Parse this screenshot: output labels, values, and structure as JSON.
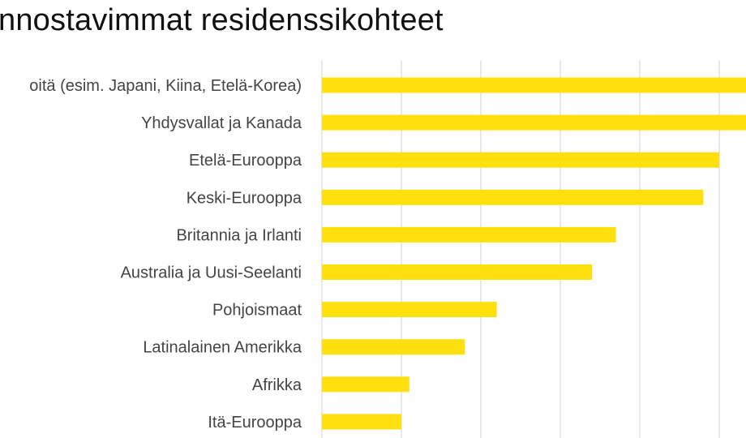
{
  "chart_data": {
    "type": "bar",
    "orientation": "horizontal",
    "title": "nnostavimmat residenssikohteet",
    "categories": [
      "oitä (esim. Japani, Kiina, Etelä-Korea)",
      "Yhdysvallat ja Kanada",
      "Etelä-Eurooppa",
      "Keski-Eurooppa",
      "Britannia ja Irlanti",
      "Australia ja Uusi-Seelanti",
      "Pohjoismaat",
      "Latinalainen Amerikka",
      "Afrikka",
      "Itä-Eurooppa"
    ],
    "values": [
      54,
      54,
      50,
      48,
      37,
      34,
      22,
      18,
      11,
      10
    ],
    "xlim": [
      0,
      54
    ],
    "grid": true,
    "xlabel": "",
    "ylabel": "",
    "colors": {
      "bar": "#FFE00F",
      "grid": "#D9D9D9",
      "label": "#444444",
      "title": "#111111"
    }
  }
}
